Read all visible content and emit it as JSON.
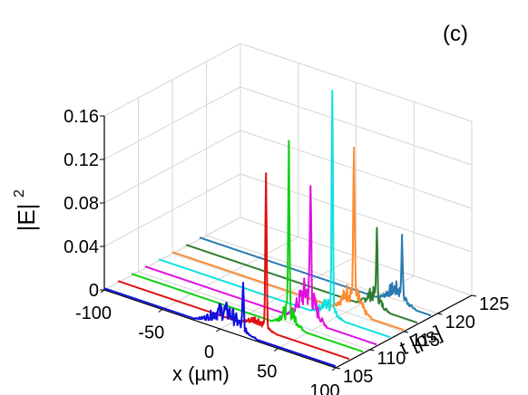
{
  "panel_label": "(c)",
  "chart_data": {
    "type": "line",
    "projection": "3d-waterfall",
    "title": "",
    "xlabel": "x (µm)",
    "ylabel": "t [ps]",
    "zlabel": "|E|",
    "zlabel_sup": "2",
    "xlim": [
      -100,
      100
    ],
    "ylim": [
      105,
      125
    ],
    "zlim": [
      0,
      0.16
    ],
    "x_ticks": [
      "-100",
      "-50",
      "0",
      "50",
      "100"
    ],
    "y_ticks": [
      "105",
      "110",
      "115",
      "120",
      "125"
    ],
    "z_ticks": [
      "0",
      "0.04",
      "0.08",
      "0.12",
      "0.16"
    ],
    "grid": true,
    "series": [
      {
        "t": 105,
        "color": "#1010e0",
        "peak_x": 20,
        "peak": 0.04,
        "noise_center": 5,
        "noise_width": 22,
        "noise_amp": 0.018
      },
      {
        "t": 107,
        "color": "#e01010",
        "peak_x": 28,
        "peak": 0.14,
        "noise_center": 20,
        "noise_width": 14,
        "noise_amp": 0.008
      },
      {
        "t": 109,
        "color": "#10d010",
        "peak_x": 36,
        "peak": 0.15,
        "noise_center": 36,
        "noise_width": 12,
        "noise_amp": 0.016
      },
      {
        "t": 111,
        "color": "#e010e0",
        "peak_x": 43,
        "peak": 0.1,
        "noise_center": 40,
        "noise_width": 14,
        "noise_amp": 0.03
      },
      {
        "t": 113,
        "color": "#10e0e0",
        "peak_x": 50,
        "peak": 0.2,
        "noise_center": 46,
        "noise_width": 12,
        "noise_amp": 0.012
      },
      {
        "t": 115,
        "color": "#ff8c30",
        "peak_x": 57,
        "peak": 0.135,
        "noise_center": 55,
        "noise_width": 14,
        "noise_amp": 0.022
      },
      {
        "t": 117,
        "color": "#2e7d2e",
        "peak_x": 65,
        "peak": 0.06,
        "noise_center": 62,
        "noise_width": 12,
        "noise_amp": 0.014
      },
      {
        "t": 119,
        "color": "#2a7ab0",
        "peak_x": 75,
        "peak": 0.05,
        "noise_center": 70,
        "noise_width": 14,
        "noise_amp": 0.015
      }
    ]
  }
}
